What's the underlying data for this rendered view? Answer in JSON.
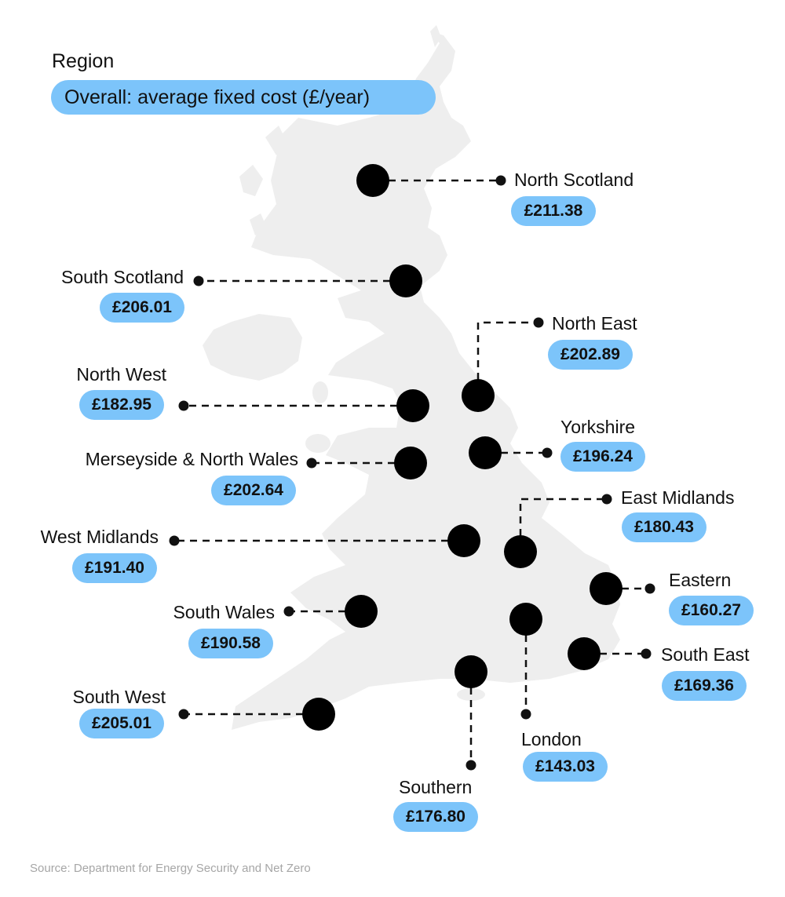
{
  "legend": {
    "title": "Region",
    "metric": "Overall: average fixed cost (£/year)",
    "accent_color": "#7cc4fa"
  },
  "regions": [
    {
      "name": "North Scotland",
      "value": "£211.38"
    },
    {
      "name": "South Scotland",
      "value": "£206.01"
    },
    {
      "name": "North East",
      "value": "£202.89"
    },
    {
      "name": "North West",
      "value": "£182.95"
    },
    {
      "name": "Yorkshire",
      "value": "£196.24"
    },
    {
      "name": "Merseyside & North Wales",
      "value": "£202.64"
    },
    {
      "name": "East Midlands",
      "value": "£180.43"
    },
    {
      "name": "West Midlands",
      "value": "£191.40"
    },
    {
      "name": "Eastern",
      "value": "£160.27"
    },
    {
      "name": "South Wales",
      "value": "£190.58"
    },
    {
      "name": "South East",
      "value": "£169.36"
    },
    {
      "name": "South West",
      "value": "£205.01"
    },
    {
      "name": "London",
      "value": "£143.03"
    },
    {
      "name": "Southern",
      "value": "£176.80"
    }
  ],
  "source": "Source: Department for Energy Security and Net Zero",
  "map_color": "#eeeeee"
}
